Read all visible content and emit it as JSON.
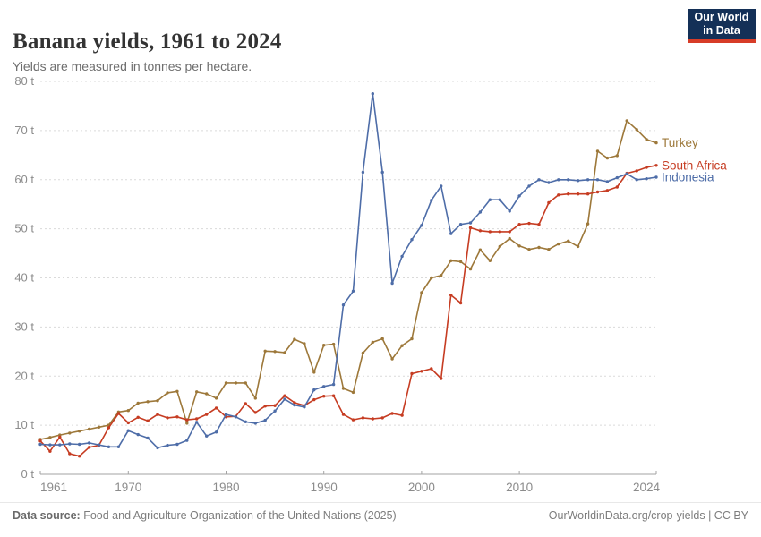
{
  "header": {
    "title": "Banana yields, 1961 to 2024",
    "subtitle": "Yields are measured in tonnes per hectare.",
    "logo": {
      "line1": "Our World",
      "line2": "in Data",
      "bg_color": "#143057",
      "accent_color": "#d73c28"
    }
  },
  "footer": {
    "source_label": "Data source:",
    "source_text": " Food and Agriculture Organization of the United Nations (2025)",
    "credit": "OurWorldinData.org/crop-yields | CC BY"
  },
  "colors": {
    "grid": "#dadada",
    "axis": "#a3a3a3",
    "tick_text": "#8c8c8c"
  },
  "chart_data": {
    "type": "line",
    "title": "Banana yields, 1961 to 2024",
    "subtitle": "Yields are measured in tonnes per hectare.",
    "unit": "tonnes per hectare",
    "xlabel": "",
    "ylabel": "",
    "xlim": [
      1961,
      2024
    ],
    "ylim": [
      0,
      80
    ],
    "grid": "horizontal-dashed",
    "legend_position": "line-end-labels",
    "yticks": [
      {
        "value": 0,
        "label": "0 t"
      },
      {
        "value": 10,
        "label": "10 t"
      },
      {
        "value": 20,
        "label": "20 t"
      },
      {
        "value": 30,
        "label": "30 t"
      },
      {
        "value": 40,
        "label": "40 t"
      },
      {
        "value": 50,
        "label": "50 t"
      },
      {
        "value": 60,
        "label": "60 t"
      },
      {
        "value": 70,
        "label": "70 t"
      },
      {
        "value": 80,
        "label": "80 t"
      }
    ],
    "xticks": [
      {
        "value": 1961,
        "label": "1961"
      },
      {
        "value": 1970,
        "label": "1970"
      },
      {
        "value": 1980,
        "label": "1980"
      },
      {
        "value": 1990,
        "label": "1990"
      },
      {
        "value": 2000,
        "label": "2000"
      },
      {
        "value": 2010,
        "label": "2010"
      },
      {
        "value": 2024,
        "label": "2024"
      }
    ],
    "x": [
      1961,
      1962,
      1963,
      1964,
      1965,
      1966,
      1967,
      1968,
      1969,
      1970,
      1971,
      1972,
      1973,
      1974,
      1975,
      1976,
      1977,
      1978,
      1979,
      1980,
      1981,
      1982,
      1983,
      1984,
      1985,
      1986,
      1987,
      1988,
      1989,
      1990,
      1991,
      1992,
      1993,
      1994,
      1995,
      1996,
      1997,
      1998,
      1999,
      2000,
      2001,
      2002,
      2003,
      2004,
      2005,
      2006,
      2007,
      2008,
      2009,
      2010,
      2011,
      2012,
      2013,
      2014,
      2015,
      2016,
      2017,
      2018,
      2019,
      2020,
      2021,
      2022,
      2023,
      2024
    ],
    "series": [
      {
        "name": "Turkey",
        "color": "#9d783a",
        "values": [
          7.1,
          7.5,
          8.0,
          8.4,
          8.8,
          9.2,
          9.6,
          10.0,
          12.7,
          13.0,
          14.5,
          14.8,
          15.0,
          16.6,
          16.9,
          10.4,
          16.8,
          16.4,
          15.5,
          18.6,
          18.6,
          18.6,
          15.5,
          25.1,
          25.0,
          24.8,
          27.5,
          26.6,
          20.8,
          26.3,
          26.5,
          17.5,
          16.7,
          24.7,
          26.9,
          27.6,
          23.5,
          26.2,
          27.6,
          37.0,
          40.0,
          40.5,
          43.5,
          43.3,
          41.8,
          45.7,
          43.5,
          46.4,
          48.0,
          46.5,
          45.8,
          46.2,
          45.8,
          46.9,
          47.5,
          46.4,
          51.0,
          65.8,
          64.4,
          64.9,
          72.0,
          70.2,
          68.2,
          67.5
        ]
      },
      {
        "name": "South Africa",
        "color": "#c63c22",
        "values": [
          6.8,
          4.7,
          7.6,
          4.2,
          3.7,
          5.5,
          5.9,
          9.5,
          12.4,
          10.5,
          11.6,
          10.9,
          12.2,
          11.5,
          11.7,
          11.1,
          11.3,
          12.2,
          13.5,
          11.7,
          11.8,
          14.4,
          12.6,
          13.9,
          14.0,
          16.0,
          14.6,
          14.0,
          15.2,
          15.9,
          16.0,
          12.2,
          11.1,
          11.5,
          11.3,
          11.5,
          12.4,
          12.0,
          20.5,
          21.0,
          21.5,
          19.5,
          36.5,
          34.9,
          50.2,
          49.6,
          49.4,
          49.4,
          49.4,
          50.9,
          51.1,
          50.9,
          55.3,
          56.9,
          57.1,
          57.1,
          57.1,
          57.5,
          57.8,
          58.5,
          61.3,
          61.8,
          62.5,
          62.9
        ]
      },
      {
        "name": "Indonesia",
        "color": "#4e6da8",
        "values": [
          6.1,
          6.0,
          6.0,
          6.2,
          6.1,
          6.4,
          6.0,
          5.6,
          5.6,
          8.9,
          8.1,
          7.4,
          5.4,
          5.9,
          6.1,
          6.9,
          10.6,
          7.8,
          8.6,
          12.2,
          11.7,
          10.7,
          10.4,
          11.0,
          12.9,
          15.3,
          14.1,
          13.7,
          17.2,
          17.9,
          18.3,
          34.5,
          37.3,
          61.5,
          77.5,
          61.5,
          38.9,
          44.4,
          47.8,
          50.7,
          55.8,
          58.7,
          49.0,
          50.9,
          51.2,
          53.4,
          55.9,
          55.9,
          53.6,
          56.7,
          58.7,
          60.0,
          59.4,
          60.0,
          60.0,
          59.8,
          60.0,
          60.0,
          59.6,
          60.4,
          61.2,
          60.0,
          60.2,
          60.5
        ]
      }
    ]
  }
}
